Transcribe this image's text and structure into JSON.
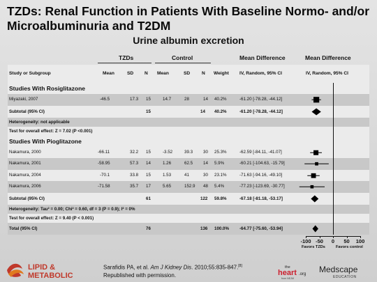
{
  "slide": {
    "title": "TZDs: Renal Function in Patients With Baseline Normo- and/or Microalbuminuria and T2DM",
    "subtitle": "Urine albumin excretion",
    "group_headers": {
      "tzds": "TZDs",
      "control": "Control",
      "mean_diff": "Mean Difference",
      "mean_diff_plot": "Mean Difference"
    },
    "column_headers": [
      "Study or Subgroup",
      "Mean",
      "SD",
      "N",
      "Mean",
      "SD",
      "N",
      "Weight",
      "IV, Random, 95% CI",
      "IV, Random, 95% CI"
    ],
    "citation_line1_prefix": "Sarafidis PA, et al. ",
    "citation_journal": "Am J Kidney Dis",
    "citation_line1_suffix": ". 2010;55:835-847.",
    "citation_ref": "[8]",
    "citation_line2": "Republished with permission.",
    "logos": {
      "lipid": "LIPID &",
      "metabolic": "METABOLIC",
      "heart_the": "the",
      "heart_main": "heart",
      "heart_org": ".org",
      "heart_sub": "from NEJM",
      "medscape": "Medscape",
      "medscape_sub": "EDUCATION"
    },
    "colors": {
      "band": "#c8c8c8",
      "light": "#ebebeb",
      "logo_red": "#c0392b",
      "logo_orange": "#e07a1f",
      "heart_red": "#cc1f2e"
    }
  },
  "chart_data": {
    "type": "table",
    "sections": [
      {
        "label": "Studies With Rosiglitazone",
        "studies": [
          {
            "name": "Miyazaki, 2007",
            "tzd_mean": "-46.5",
            "tzd_sd": "17.3",
            "tzd_n": "15",
            "ctrl_mean": "14.7",
            "ctrl_sd": "28",
            "ctrl_n": "14",
            "weight": "40.2%",
            "ci": "-61.20 [-78.28, -44.12]",
            "md": -61.2,
            "lo": -78.28,
            "hi": -44.12,
            "w": 40.2
          }
        ],
        "subtotal": {
          "label": "Subtotal (95% CI)",
          "tzd_n": "15",
          "ctrl_n": "14",
          "weight": "40.2%",
          "ci": "-61.20 [-78.28, -44.12]",
          "md": -61.2,
          "lo": -78.28,
          "hi": -44.12
        },
        "heterogeneity": "Heterogeneity: not applicable",
        "overall_effect": "Test for overall effect: Z = 7.02 (P <0.001)"
      },
      {
        "label": "Studies With Pioglitazone",
        "studies": [
          {
            "name": "Nakamura, 2000",
            "tzd_mean": "-66.11",
            "tzd_sd": "32.2",
            "tzd_n": "15",
            "ctrl_mean": "-3.52",
            "ctrl_sd": "39.3",
            "ctrl_n": "30",
            "weight": "25.3%",
            "ci": "-62.59 [-84.11, -41.07]",
            "md": -62.59,
            "lo": -84.11,
            "hi": -41.07,
            "w": 25.3
          },
          {
            "name": "Nakamura, 2001",
            "tzd_mean": "-58.95",
            "tzd_sd": "57.3",
            "tzd_n": "14",
            "ctrl_mean": "1.26",
            "ctrl_sd": "62.5",
            "ctrl_n": "14",
            "weight": "5.9%",
            "ci": "-60.21 [-104.63, -15.79]",
            "md": -60.21,
            "lo": -104.63,
            "hi": -15.79,
            "w": 5.9
          },
          {
            "name": "Nakamura, 2004",
            "tzd_mean": "-70.1",
            "tzd_sd": "33.8",
            "tzd_n": "15",
            "ctrl_mean": "1.53",
            "ctrl_sd": "41",
            "ctrl_n": "30",
            "weight": "23.1%",
            "ci": "-71.63 [-94.16, -49.10]",
            "md": -71.63,
            "lo": -94.16,
            "hi": -49.1,
            "w": 23.1
          },
          {
            "name": "Nakamura, 2006",
            "tzd_mean": "-71.58",
            "tzd_sd": "35.7",
            "tzd_n": "17",
            "ctrl_mean": "5.65",
            "ctrl_sd": "152.9",
            "ctrl_n": "48",
            "weight": "5.4%",
            "ci": "-77.23 [-123.69, -30.77]",
            "md": -77.23,
            "lo": -123.69,
            "hi": -30.77,
            "w": 5.4
          }
        ],
        "subtotal": {
          "label": "Subtotal (95% CI)",
          "tzd_n": "61",
          "ctrl_n": "122",
          "weight": "59.8%",
          "ci": "-67.18 [-81.18, -53.17]",
          "md": -67.18,
          "lo": -81.18,
          "hi": -53.17
        },
        "heterogeneity": "Heterogeneity: Tau² = 0.00; Chi² = 0.60, df = 3 (P = 0.9); I² = 0%",
        "overall_effect": "Test for overall effect: Z = 9.40 (P < 0.001)"
      }
    ],
    "total": {
      "label": "Total (95% CI)",
      "tzd_n": "76",
      "ctrl_n": "136",
      "weight": "100.0%",
      "ci": "-64.77 [-75.60, -53.94]",
      "md": -64.77,
      "lo": -75.6,
      "hi": -53.94
    },
    "x_axis": {
      "range": [
        -100,
        100
      ],
      "ticks": [
        "-100",
        "-50",
        "0",
        "50",
        "100"
      ],
      "left_label": "Favors TZDs",
      "right_label": "Favors control"
    }
  }
}
